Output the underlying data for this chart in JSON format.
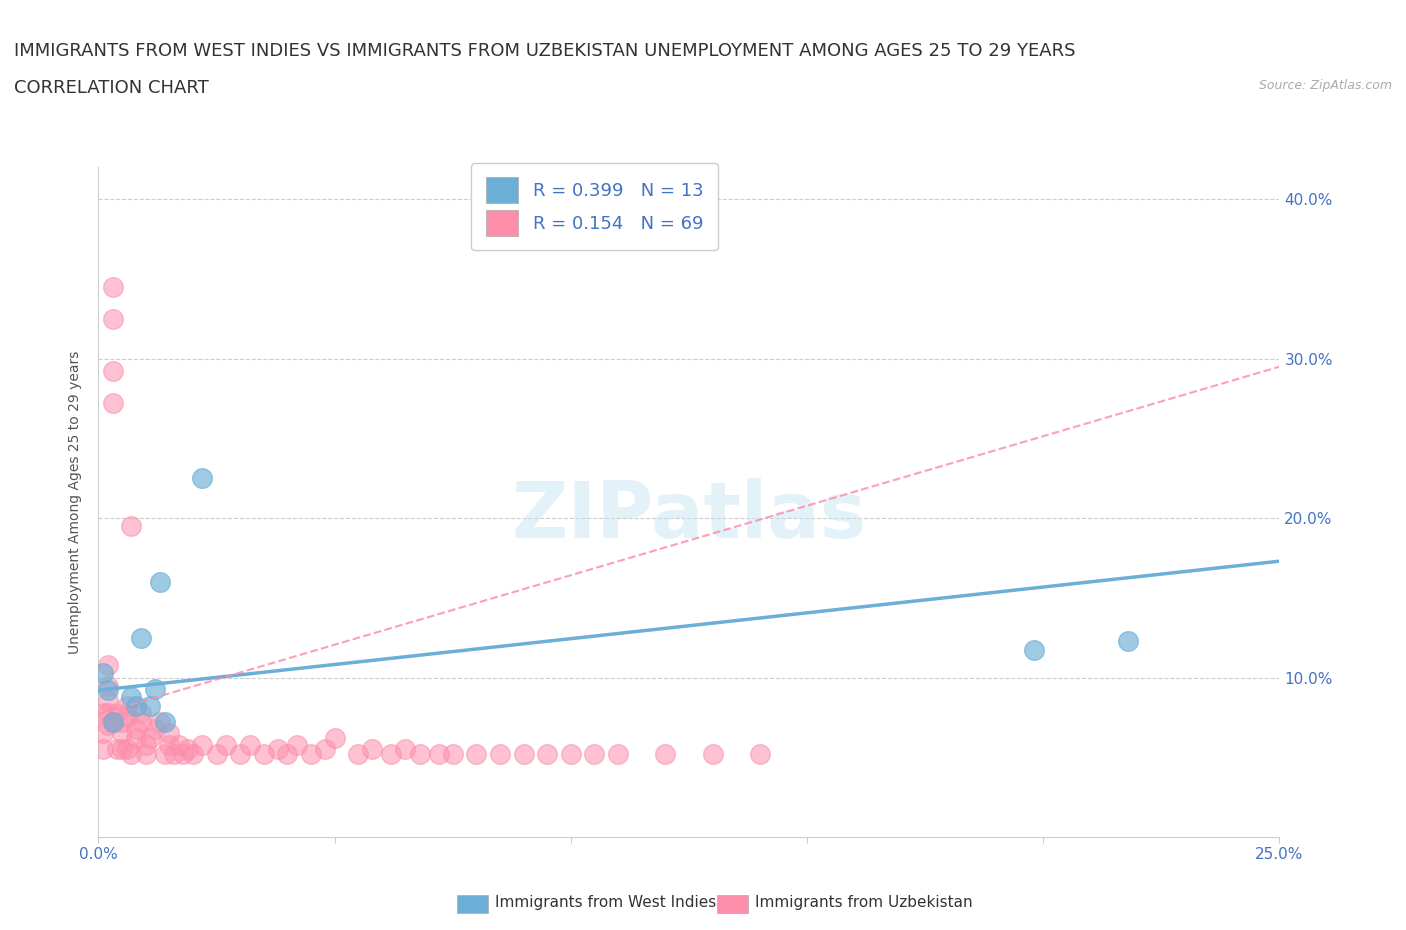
{
  "title_line1": "IMMIGRANTS FROM WEST INDIES VS IMMIGRANTS FROM UZBEKISTAN UNEMPLOYMENT AMONG AGES 25 TO 29 YEARS",
  "title_line2": "CORRELATION CHART",
  "source_text": "Source: ZipAtlas.com",
  "ylabel": "Unemployment Among Ages 25 to 29 years",
  "xlim": [
    0.0,
    0.25
  ],
  "ylim": [
    0.0,
    0.42
  ],
  "xtick_positions": [
    0.0,
    0.05,
    0.1,
    0.15,
    0.2,
    0.25
  ],
  "xtick_labels": [
    "0.0%",
    "",
    "",
    "",
    "",
    "25.0%"
  ],
  "ytick_positions": [
    0.0,
    0.1,
    0.2,
    0.3,
    0.4
  ],
  "ytick_labels": [
    "",
    "10.0%",
    "20.0%",
    "30.0%",
    "40.0%"
  ],
  "west_indies_color": "#6baed6",
  "uzbekistan_color": "#fc8eac",
  "west_indies_R": 0.399,
  "west_indies_N": 13,
  "uzbekistan_R": 0.154,
  "uzbekistan_N": 69,
  "legend_label_wi": "Immigrants from West Indies",
  "legend_label_uz": "Immigrants from Uzbekistan",
  "watermark": "ZIPatlas",
  "west_indies_x": [
    0.002,
    0.001,
    0.003,
    0.008,
    0.007,
    0.009,
    0.012,
    0.011,
    0.013,
    0.014,
    0.022,
    0.198,
    0.218
  ],
  "west_indies_y": [
    0.092,
    0.103,
    0.072,
    0.082,
    0.088,
    0.125,
    0.093,
    0.082,
    0.16,
    0.072,
    0.225,
    0.117,
    0.123
  ],
  "uzbekistan_x": [
    0.001,
    0.001,
    0.001,
    0.002,
    0.002,
    0.002,
    0.002,
    0.002,
    0.003,
    0.003,
    0.003,
    0.003,
    0.003,
    0.004,
    0.004,
    0.005,
    0.005,
    0.005,
    0.006,
    0.006,
    0.006,
    0.007,
    0.007,
    0.008,
    0.008,
    0.009,
    0.009,
    0.01,
    0.01,
    0.011,
    0.012,
    0.013,
    0.014,
    0.015,
    0.015,
    0.016,
    0.017,
    0.018,
    0.019,
    0.02,
    0.022,
    0.025,
    0.027,
    0.03,
    0.032,
    0.035,
    0.038,
    0.04,
    0.042,
    0.045,
    0.048,
    0.05,
    0.055,
    0.058,
    0.062,
    0.065,
    0.068,
    0.072,
    0.075,
    0.08,
    0.085,
    0.09,
    0.095,
    0.1,
    0.105,
    0.11,
    0.12,
    0.13,
    0.14
  ],
  "uzbekistan_y": [
    0.055,
    0.065,
    0.078,
    0.07,
    0.078,
    0.085,
    0.095,
    0.108,
    0.272,
    0.292,
    0.325,
    0.345,
    0.072,
    0.078,
    0.055,
    0.055,
    0.065,
    0.072,
    0.075,
    0.082,
    0.055,
    0.195,
    0.052,
    0.062,
    0.068,
    0.072,
    0.078,
    0.052,
    0.058,
    0.062,
    0.068,
    0.072,
    0.052,
    0.058,
    0.065,
    0.052,
    0.058,
    0.052,
    0.055,
    0.052,
    0.058,
    0.052,
    0.058,
    0.052,
    0.058,
    0.052,
    0.055,
    0.052,
    0.058,
    0.052,
    0.055,
    0.062,
    0.052,
    0.055,
    0.052,
    0.055,
    0.052,
    0.052,
    0.052,
    0.052,
    0.052,
    0.052,
    0.052,
    0.052,
    0.052,
    0.052,
    0.052,
    0.052,
    0.052
  ],
  "wi_trend_x": [
    0.0,
    0.25
  ],
  "wi_trend_y": [
    0.092,
    0.173
  ],
  "uz_trend_x": [
    0.0,
    0.25
  ],
  "uz_trend_y": [
    0.077,
    0.295
  ],
  "background_color": "#ffffff",
  "grid_color": "#cccccc",
  "title_fontsize": 13,
  "subtitle_fontsize": 13,
  "axis_label_fontsize": 10,
  "tick_fontsize": 11,
  "legend_fontsize": 13
}
